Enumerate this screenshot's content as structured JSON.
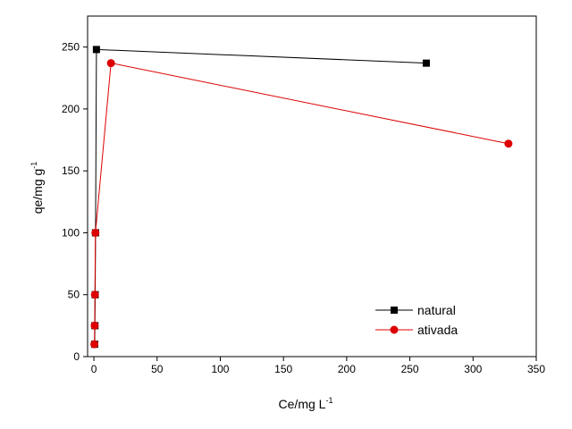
{
  "chart_data": {
    "type": "line",
    "xlabel": "Ce/mg L",
    "xlabel_sup": "-1",
    "ylabel": "qe/mg g",
    "ylabel_sup": "-1",
    "xlim": [
      -5,
      350
    ],
    "ylim": [
      0,
      275
    ],
    "xticks": [
      0,
      50,
      100,
      150,
      200,
      250,
      300,
      350
    ],
    "yticks": [
      0,
      50,
      100,
      150,
      200,
      250
    ],
    "grid": false,
    "legend_position": "bottom-right",
    "series": [
      {
        "name": "natural",
        "color": "#000000",
        "marker": "square",
        "points": [
          [
            0.6,
            10
          ],
          [
            0.8,
            25
          ],
          [
            1.0,
            50
          ],
          [
            1.3,
            100
          ],
          [
            2.0,
            248
          ],
          [
            263,
            237
          ]
        ]
      },
      {
        "name": "ativada",
        "color": "#dd0000",
        "marker": "circle",
        "points": [
          [
            0.4,
            10
          ],
          [
            0.6,
            25
          ],
          [
            0.8,
            50
          ],
          [
            1.2,
            100
          ],
          [
            13.5,
            237
          ],
          [
            328,
            172
          ]
        ]
      }
    ]
  }
}
